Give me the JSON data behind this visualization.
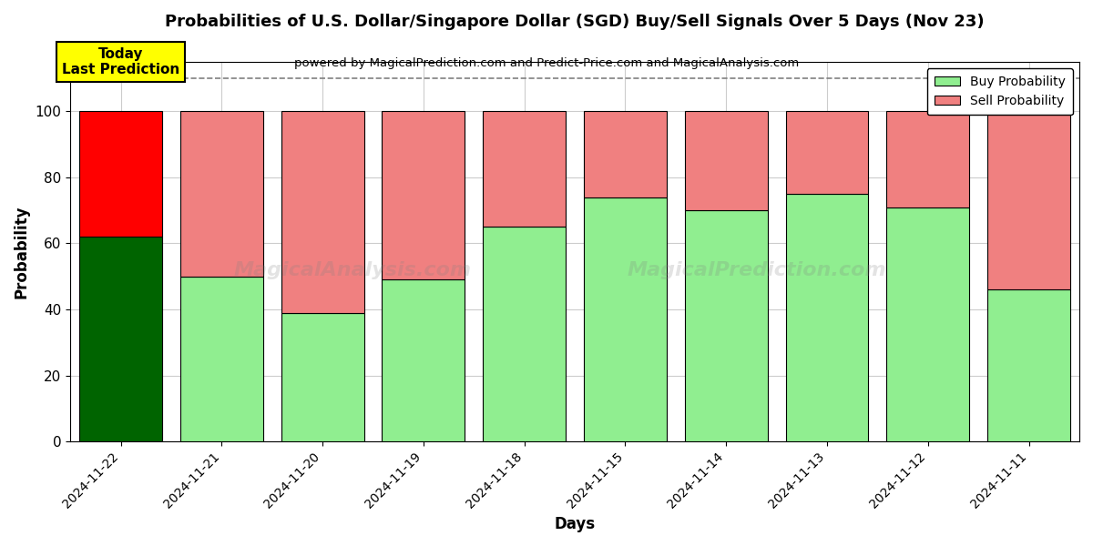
{
  "title": "Probabilities of U.S. Dollar/Singapore Dollar (SGD) Buy/Sell Signals Over 5 Days (Nov 23)",
  "subtitle": "powered by MagicalPrediction.com and Predict-Price.com and MagicalAnalysis.com",
  "xlabel": "Days",
  "ylabel": "Probability",
  "categories": [
    "2024-11-22",
    "2024-11-21",
    "2024-11-20",
    "2024-11-19",
    "2024-11-18",
    "2024-11-15",
    "2024-11-14",
    "2024-11-13",
    "2024-11-12",
    "2024-11-11"
  ],
  "buy_values": [
    62,
    50,
    39,
    49,
    65,
    74,
    70,
    75,
    71,
    46
  ],
  "sell_values": [
    38,
    50,
    61,
    51,
    35,
    26,
    30,
    25,
    29,
    54
  ],
  "today_buy_color": "#006400",
  "today_sell_color": "#FF0000",
  "buy_color": "#90EE90",
  "sell_color": "#F08080",
  "bar_edge_color": "#000000",
  "ylim": [
    0,
    115
  ],
  "yticks": [
    0,
    20,
    40,
    60,
    80,
    100
  ],
  "dashed_line_y": 110,
  "today_label": "Today\nLast Prediction",
  "today_box_color": "#FFFF00",
  "legend_buy_label": "Buy Probability",
  "legend_sell_label": "Sell Probability",
  "watermark1": "MagicalAnalysis.com",
  "watermark2": "MagicalPrediction.com",
  "background_color": "#ffffff",
  "grid_color": "#cccccc",
  "bar_width": 0.82
}
